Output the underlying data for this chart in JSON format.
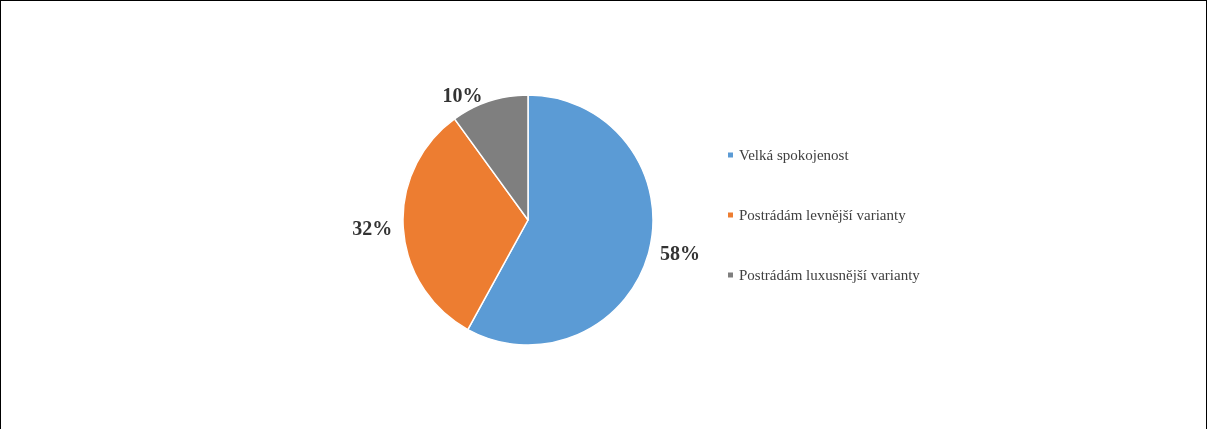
{
  "chart_data": {
    "type": "pie",
    "categories": [
      "Velká spokojenost",
      "Postrádám levnější varianty",
      "Postrádám luxusnější varianty"
    ],
    "values": [
      58,
      32,
      10
    ],
    "value_labels": [
      "58%",
      "32%",
      "10%"
    ],
    "colors": [
      "#5b9bd5",
      "#ed7d31",
      "#7f7f7f"
    ],
    "legend": "right"
  }
}
